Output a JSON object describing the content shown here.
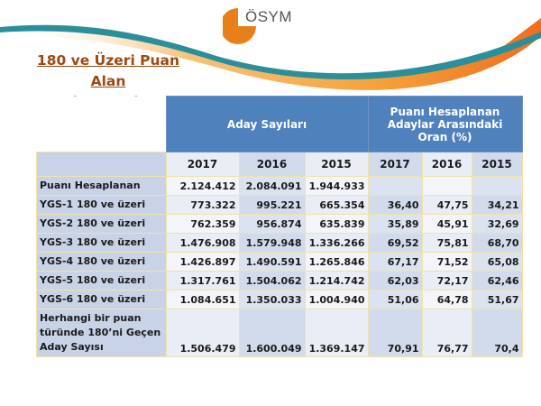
{
  "logo": {
    "text": "ÖSYM",
    "color": "#e8801a"
  },
  "title": {
    "line1": "180 ve Üzeri Puan Alan",
    "line2": "Aday Sayıları"
  },
  "table": {
    "group_headers": [
      "Aday Sayıları",
      "Puanı Hesaplanan Adaylar Arasındaki Oran (%)"
    ],
    "years": [
      "2017",
      "2016",
      "2015",
      "2017",
      "2016",
      "2015"
    ],
    "rows": [
      {
        "label": "Puanı Hesaplanan",
        "values": [
          "2.124.412",
          "2.084.091",
          "1.944.933",
          "",
          "",
          ""
        ]
      },
      {
        "label": "YGS-1  180 ve üzeri",
        "values": [
          "773.322",
          "995.221",
          "665.354",
          "36,40",
          "47,75",
          "34,21"
        ]
      },
      {
        "label": "YGS-2  180 ve üzeri",
        "values": [
          "762.359",
          "956.874",
          "635.839",
          "35,89",
          "45,91",
          "32,69"
        ]
      },
      {
        "label": "YGS-3  180 ve üzeri",
        "values": [
          "1.476.908",
          "1.579.948",
          "1.336.266",
          "69,52",
          "75,81",
          "68,70"
        ]
      },
      {
        "label": "YGS-4  180 ve üzeri",
        "values": [
          "1.426.897",
          "1.490.591",
          "1.265.846",
          "67,17",
          "71,52",
          "65,08"
        ]
      },
      {
        "label": "YGS-5  180 ve üzeri",
        "values": [
          "1.317.761",
          "1.504.062",
          "1.214.742",
          "62,03",
          "72,17",
          "62,46"
        ]
      },
      {
        "label": "YGS-6  180 ve üzeri",
        "values": [
          "1.084.651",
          "1.350.033",
          "1.004.940",
          "51,06",
          "64,78",
          "51,67"
        ]
      },
      {
        "label": "Herhangi bir puan türünde 180’ni Geçen Aday Sayısı",
        "values": [
          "1.506.479",
          "1.600.049",
          "1.369.147",
          "70,91",
          "76,77",
          "70,4"
        ]
      }
    ]
  },
  "colors": {
    "header_blue": "#4f81bd",
    "title_brown": "#9c4a12",
    "swoosh_teal": "#2a8f9a",
    "swoosh_orange": "#f08a24"
  }
}
